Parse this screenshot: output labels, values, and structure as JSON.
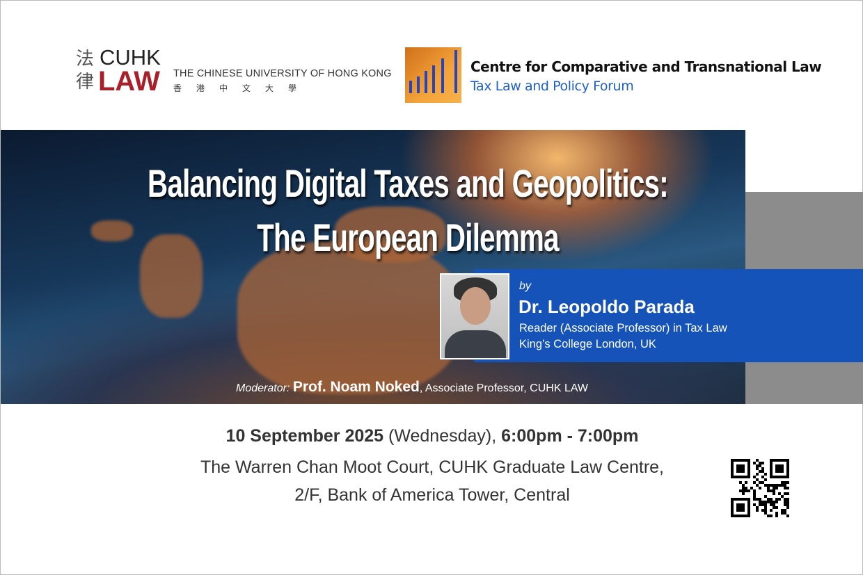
{
  "logos": {
    "cuhk_chars": "法律",
    "cuhk_word": "CUHK",
    "law_word": "LAW",
    "university_en": "THE CHINESE UNIVERSITY OF HONG KONG",
    "university_zh": "香港中文大學",
    "centre_title": "Centre for Comparative and Transnational Law",
    "centre_subtitle": "Tax Law and Policy Forum"
  },
  "event": {
    "title_line1": "Balancing Digital Taxes and Geopolitics:",
    "title_line2": "The European Dilemma",
    "by": "by",
    "speaker_name": "Dr. Leopoldo Parada",
    "speaker_role": "Reader (Associate Professor) in Tax Law",
    "speaker_affiliation": "King’s College London, UK",
    "moderator_label": "Moderator:",
    "moderator_name": "Prof. Noam Noked",
    "moderator_role": ", Associate Professor, CUHK LAW",
    "date": "10 September 2025",
    "weekday": " (Wednesday), ",
    "time": "6:00pm - 7:00pm",
    "venue_line1": "The Warren Chan Moot Court, CUHK Graduate Law Centre,",
    "venue_line2": "2/F, Bank of America Tower, Central"
  },
  "colors": {
    "law_red": "#a8202a",
    "accent_blue": "#1553b8",
    "gray_bar": "#8c8c8c"
  }
}
